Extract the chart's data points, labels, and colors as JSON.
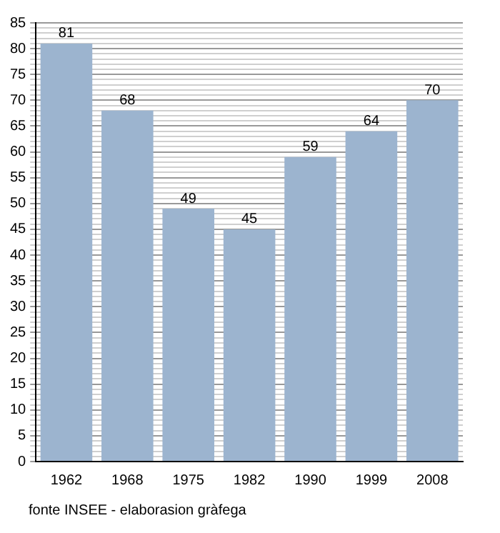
{
  "chart_data": {
    "type": "bar",
    "categories": [
      "1962",
      "1968",
      "1975",
      "1982",
      "1990",
      "1999",
      "2008"
    ],
    "values": [
      81,
      68,
      49,
      45,
      59,
      64,
      70
    ],
    "color": "#9cb4cf",
    "ylim": [
      0,
      85
    ],
    "yticks": [
      0,
      {
        "value": 1,
        "label": null
      },
      {
        "value": 2,
        "label": null
      },
      {
        "value": 3,
        "label": null
      },
      {
        "value": 4,
        "label": null
      },
      5,
      {
        "value": 6,
        "label": null
      },
      {
        "value": 7,
        "label": null
      },
      {
        "value": 8,
        "label": null
      },
      {
        "value": 9,
        "label": null
      },
      10,
      {
        "value": 11,
        "label": null
      },
      {
        "value": 12,
        "label": null
      },
      {
        "value": 13,
        "label": null
      },
      {
        "value": 14,
        "label": null
      },
      15,
      {
        "value": 16,
        "label": null
      },
      {
        "value": 17,
        "label": null
      },
      {
        "value": 18,
        "label": null
      },
      {
        "value": 19,
        "label": null
      },
      20,
      {
        "value": 21,
        "label": null
      },
      {
        "value": 22,
        "label": null
      },
      {
        "value": 23,
        "label": null
      },
      {
        "value": 24,
        "label": null
      },
      25,
      {
        "value": 26,
        "label": null
      },
      {
        "value": 27,
        "label": null
      },
      {
        "value": 28,
        "label": null
      },
      {
        "value": 29,
        "label": null
      },
      30,
      {
        "value": 31,
        "label": null
      },
      {
        "value": 32,
        "label": null
      },
      {
        "value": 33,
        "label": null
      },
      {
        "value": 34,
        "label": null
      },
      35,
      {
        "value": 36,
        "label": null
      },
      {
        "value": 37,
        "label": null
      },
      {
        "value": 38,
        "label": null
      },
      {
        "value": 39,
        "label": null
      },
      40,
      {
        "value": 41,
        "label": null
      },
      {
        "value": 42,
        "label": null
      },
      {
        "value": 43,
        "label": null
      },
      {
        "value": 44,
        "label": null
      },
      45,
      {
        "value": 46,
        "label": null
      },
      {
        "value": 47,
        "label": null
      },
      {
        "value": 48,
        "label": null
      },
      {
        "value": 49,
        "label": null
      },
      50,
      {
        "value": 51,
        "label": null
      },
      {
        "value": 52,
        "label": null
      },
      {
        "value": 53,
        "label": null
      },
      {
        "value": 54,
        "label": null
      },
      55,
      {
        "value": 56,
        "label": null
      },
      {
        "value": 57,
        "label": null
      },
      {
        "value": 58,
        "label": null
      },
      {
        "value": 59,
        "label": null
      },
      60,
      {
        "value": 61,
        "label": null
      },
      {
        "value": 62,
        "label": null
      },
      {
        "value": 63,
        "label": null
      },
      {
        "value": 64,
        "label": null
      },
      65,
      {
        "value": 66,
        "label": null
      },
      {
        "value": 67,
        "label": null
      },
      {
        "value": 68,
        "label": null
      },
      {
        "value": 69,
        "label": null
      },
      70,
      {
        "value": 71,
        "label": null
      },
      {
        "value": 72,
        "label": null
      },
      {
        "value": 73,
        "label": null
      },
      {
        "value": 74,
        "label": null
      },
      75,
      {
        "value": 76,
        "label": null
      },
      {
        "value": 77,
        "label": null
      },
      {
        "value": 78,
        "label": null
      },
      {
        "value": 79,
        "label": null
      },
      80,
      {
        "value": 81,
        "label": null
      },
      {
        "value": 82,
        "label": null
      },
      {
        "value": 83,
        "label": null
      },
      {
        "value": 84,
        "label": null
      },
      85
    ],
    "grid": "y",
    "data_labels": true,
    "annotations": [
      "fonte INSEE - elaborasion gràfega"
    ]
  }
}
